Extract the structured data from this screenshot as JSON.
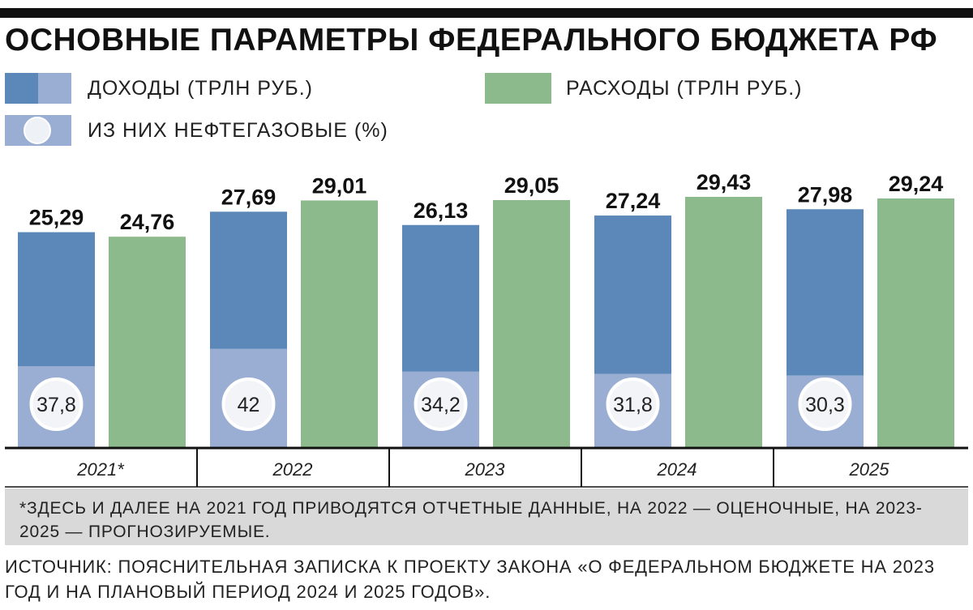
{
  "title": "ОСНОВНЫЕ ПАРАМЕТРЫ ФЕДЕРАЛЬНОГО БЮДЖЕТА РФ",
  "legend": {
    "income": "ДОХОДЫ (ТРЛН РУБ.)",
    "expenses": "РАСХОДЫ (ТРЛН РУБ.)",
    "oilgas": "ИЗ НИХ НЕФТЕГАЗОВЫЕ (%)"
  },
  "colors": {
    "income": "#5b88b8",
    "income_light": "#9aaed3",
    "expenses": "#8dba8c",
    "axis": "#111111",
    "footnote_bg": "#d9d9d9"
  },
  "chart_data": {
    "type": "bar",
    "categories": [
      "2021*",
      "2022",
      "2023",
      "2024",
      "2025"
    ],
    "series": [
      {
        "name": "ДОХОДЫ (ТРЛН РУБ.)",
        "values": [
          25.29,
          27.69,
          26.13,
          27.24,
          27.98
        ],
        "labels": [
          "25,29",
          "27,69",
          "26,13",
          "27,24",
          "27,98"
        ]
      },
      {
        "name": "РАСХОДЫ (ТРЛН РУБ.)",
        "values": [
          24.76,
          29.01,
          29.05,
          29.43,
          29.24
        ],
        "labels": [
          "24,76",
          "29,01",
          "29,05",
          "29,43",
          "29,24"
        ]
      }
    ],
    "oil_gas_share": {
      "name": "ИЗ НИХ НЕФТЕГАЗОВЫЕ (%)",
      "values": [
        37.8,
        42,
        34.2,
        31.8,
        30.3
      ],
      "labels": [
        "37,8",
        "42",
        "34,2",
        "31,8",
        "30,3"
      ]
    },
    "ylim": [
      0,
      29.43
    ],
    "grid": false
  },
  "footnote": "*ЗДЕСЬ И ДАЛЕЕ НА 2021 ГОД ПРИВОДЯТСЯ ОТЧЕТНЫЕ ДАННЫЕ, НА 2022 — ОЦЕНОЧНЫЕ, НА 2023-2025 — ПРОГНОЗИРУЕМЫЕ.",
  "source": "ИСТОЧНИК: ПОЯСНИТЕЛЬНАЯ ЗАПИСКА К ПРОЕКТУ ЗАКОНА «О ФЕДЕРАЛЬНОМ БЮДЖЕТЕ НА 2023 ГОД И НА ПЛАНОВЫЙ ПЕРИОД 2024 И 2025 ГОДОВ»."
}
